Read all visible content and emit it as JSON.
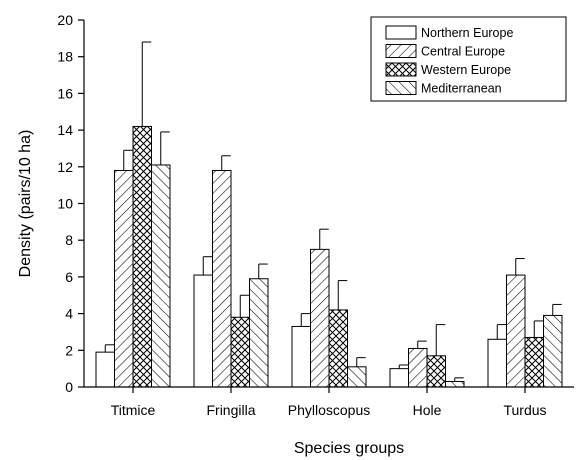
{
  "chart_data": {
    "type": "bar",
    "title": "",
    "xlabel": "Species groups",
    "ylabel": "Density (pairs/10 ha)",
    "ylim": [
      0,
      20
    ],
    "yticks": [
      0,
      2,
      4,
      6,
      8,
      10,
      12,
      14,
      16,
      18,
      20
    ],
    "grid": false,
    "legend_position": "top-right",
    "categories": [
      "Titmice",
      "Fringilla",
      "Phylloscopus",
      "Hole",
      "Turdus"
    ],
    "series": [
      {
        "name": "Northern Europe",
        "pattern": "none",
        "values": [
          1.9,
          6.1,
          3.3,
          1.0,
          2.6
        ],
        "errors": [
          0.4,
          1.0,
          0.7,
          0.2,
          0.8
        ]
      },
      {
        "name": "Central Europe",
        "pattern": "diagonal-forward",
        "values": [
          11.8,
          11.8,
          7.5,
          2.1,
          6.1
        ],
        "errors": [
          1.1,
          0.8,
          1.1,
          0.4,
          0.9
        ]
      },
      {
        "name": "Western Europe",
        "pattern": "crosshatch",
        "values": [
          14.2,
          3.8,
          4.2,
          1.7,
          2.7
        ],
        "errors": [
          4.6,
          1.2,
          1.6,
          1.7,
          0.9
        ]
      },
      {
        "name": "Mediterranean",
        "pattern": "diagonal-backward",
        "values": [
          12.1,
          5.9,
          1.1,
          0.3,
          3.9
        ],
        "errors": [
          1.8,
          0.8,
          0.5,
          0.2,
          0.6
        ]
      }
    ]
  }
}
